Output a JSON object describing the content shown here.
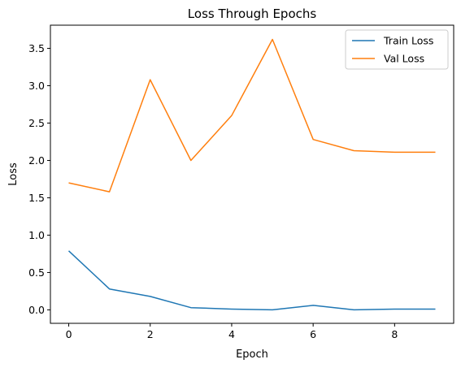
{
  "chart_data": {
    "type": "line",
    "title": "Loss Through Epochs",
    "xlabel": "Epoch",
    "ylabel": "Loss",
    "x": [
      0,
      1,
      2,
      3,
      4,
      5,
      6,
      7,
      8,
      9
    ],
    "xlim": [
      -0.45,
      9.45
    ],
    "ylim": [
      -0.18,
      3.81
    ],
    "xticks": [
      0,
      2,
      4,
      6,
      8
    ],
    "yticks": [
      0.0,
      0.5,
      1.0,
      1.5,
      2.0,
      2.5,
      3.0,
      3.5
    ],
    "ytick_labels": [
      "0.0",
      "0.5",
      "1.0",
      "1.5",
      "2.0",
      "2.5",
      "3.0",
      "3.5"
    ],
    "grid": false,
    "legend_position": "top-right",
    "series": [
      {
        "name": "Train Loss",
        "color": "#1f77b4",
        "values": [
          0.79,
          0.28,
          0.18,
          0.03,
          0.01,
          0.0,
          0.06,
          0.0,
          0.01,
          0.01
        ]
      },
      {
        "name": "Val Loss",
        "color": "#ff7f0e",
        "values": [
          1.7,
          1.58,
          3.08,
          2.0,
          2.6,
          3.62,
          2.28,
          2.13,
          2.11,
          2.11
        ]
      }
    ]
  }
}
